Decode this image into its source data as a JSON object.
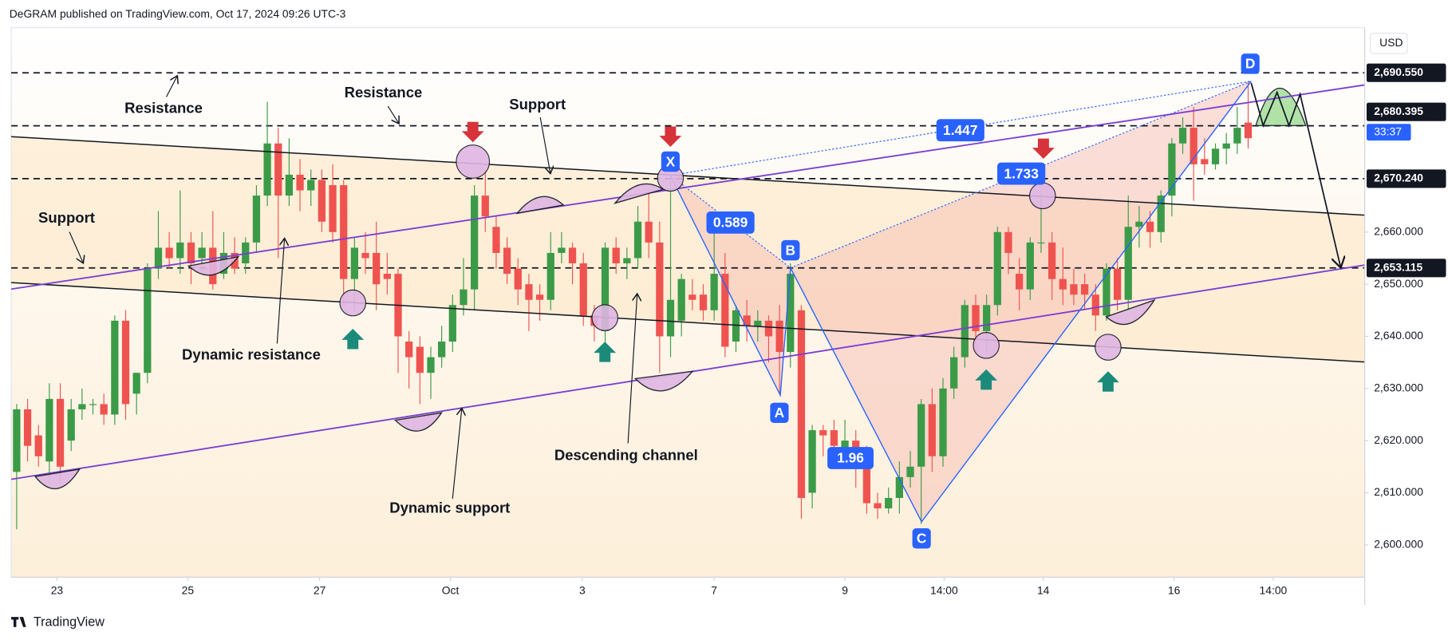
{
  "header": "DeGRAM published on TradingView.com, Oct 17, 2024 09:26 UTC-3",
  "footer": "TradingView",
  "chart_data": {
    "type": "candlestick",
    "currency": "USD",
    "countdown": "33:37",
    "up_color": "#3b9b48",
    "down_color": "#ef5350",
    "xlim": [
      0,
      124.2
    ],
    "ylim": [
      2593.8,
      2699.2
    ],
    "xticks": [
      {
        "value": 4.2,
        "label": "23"
      },
      {
        "value": 16.2,
        "label": "25"
      },
      {
        "value": 28.3,
        "label": "27"
      },
      {
        "value": 40.3,
        "label": "Oct"
      },
      {
        "value": 52.4,
        "label": "3"
      },
      {
        "value": 64.5,
        "label": "7"
      },
      {
        "value": 76.5,
        "label": "9"
      },
      {
        "value": 85.6,
        "label": "14:00"
      },
      {
        "value": 94.7,
        "label": "14"
      },
      {
        "value": 106.7,
        "label": "16"
      },
      {
        "value": 115.8,
        "label": "14:00"
      }
    ],
    "yticks": [
      {
        "value": 2600,
        "label": "2,600.000"
      },
      {
        "value": 2610,
        "label": "2,610.000"
      },
      {
        "value": 2620,
        "label": "2,620.000"
      },
      {
        "value": 2630,
        "label": "2,630.000"
      },
      {
        "value": 2640,
        "label": "2,640.000"
      },
      {
        "value": 2650,
        "label": "2,650.000"
      },
      {
        "value": 2660,
        "label": "2,660.000"
      }
    ],
    "levels": [
      {
        "value": 2690.55,
        "label": "2,690.550"
      },
      {
        "value": 2680.395,
        "label": "2,680.395"
      },
      {
        "value": 2670.24,
        "label": "2,670.240"
      },
      {
        "value": 2653.115,
        "label": "2,653.115"
      }
    ],
    "annotations": [
      "Resistance",
      "Resistance",
      "Support",
      "Support",
      "Dynamic resistance",
      "Dynamic support",
      "Descending channel"
    ],
    "pattern_points": [
      "X",
      "A",
      "B",
      "C",
      "D"
    ],
    "ratios": [
      "1.447",
      "1.733",
      "0.589",
      "1.96"
    ],
    "ohlc": [
      [
        2614,
        2627,
        2603,
        2626
      ],
      [
        2626,
        2628,
        2616,
        2619
      ],
      [
        2621,
        2623,
        2615,
        2617
      ],
      [
        2616,
        2631,
        2613,
        2628
      ],
      [
        2628,
        2631,
        2612,
        2615
      ],
      [
        2620,
        2628,
        2618,
        2626
      ],
      [
        2626,
        2630,
        2624,
        2627
      ],
      [
        2627,
        2628,
        2625,
        2627
      ],
      [
        2627,
        2629,
        2623,
        2625
      ],
      [
        2625,
        2644,
        2623,
        2643
      ],
      [
        2643,
        2645,
        2624,
        2627
      ],
      [
        2629,
        2633,
        2625,
        2633
      ],
      [
        2633,
        2654,
        2631,
        2653
      ],
      [
        2653,
        2664,
        2651,
        2657
      ],
      [
        2657,
        2660,
        2653,
        2655
      ],
      [
        2655,
        2668,
        2652,
        2658
      ],
      [
        2658,
        2660,
        2650,
        2654
      ],
      [
        2655,
        2660,
        2652,
        2657
      ],
      [
        2657,
        2664,
        2649,
        2650
      ],
      [
        2652,
        2660,
        2651,
        2656
      ],
      [
        2656,
        2659,
        2652,
        2653
      ],
      [
        2654,
        2659,
        2652,
        2658
      ],
      [
        2658,
        2669,
        2656,
        2667
      ],
      [
        2667,
        2685,
        2665,
        2677
      ],
      [
        2677,
        2680,
        2655,
        2667
      ],
      [
        2667,
        2678,
        2665,
        2671
      ],
      [
        2671,
        2674,
        2664,
        2668
      ],
      [
        2668,
        2672,
        2665,
        2670
      ],
      [
        2670,
        2672,
        2660,
        2662
      ],
      [
        2669,
        2673,
        2658,
        2660
      ],
      [
        2669,
        2670,
        2646,
        2651
      ],
      [
        2651,
        2659,
        2645,
        2657
      ],
      [
        2656,
        2660,
        2652,
        2655
      ],
      [
        2656,
        2662,
        2645,
        2650
      ],
      [
        2652,
        2656,
        2648,
        2651
      ],
      [
        2652,
        2653,
        2633,
        2640
      ],
      [
        2639,
        2641,
        2630,
        2636
      ],
      [
        2638,
        2640,
        2627,
        2633
      ],
      [
        2633,
        2638,
        2628,
        2636
      ],
      [
        2636,
        2642,
        2634,
        2639
      ],
      [
        2639,
        2648,
        2637,
        2646
      ],
      [
        2646,
        2655,
        2644,
        2649
      ],
      [
        2649,
        2669,
        2645,
        2667
      ],
      [
        2667,
        2672,
        2660,
        2663
      ],
      [
        2661,
        2663,
        2653,
        2656
      ],
      [
        2657,
        2659,
        2650,
        2652
      ],
      [
        2653,
        2655,
        2646,
        2649
      ],
      [
        2650,
        2652,
        2641,
        2647
      ],
      [
        2648,
        2650,
        2643,
        2647
      ],
      [
        2647,
        2660,
        2645,
        2656
      ],
      [
        2656,
        2660,
        2654,
        2657
      ],
      [
        2657,
        2658,
        2650,
        2654
      ],
      [
        2654,
        2656,
        2642,
        2644
      ],
      [
        2644,
        2646,
        2639,
        2642
      ],
      [
        2641,
        2658,
        2638,
        2657
      ],
      [
        2657,
        2659,
        2652,
        2654
      ],
      [
        2654,
        2657,
        2651,
        2655
      ],
      [
        2655,
        2665,
        2653,
        2662
      ],
      [
        2662,
        2668,
        2655,
        2658
      ],
      [
        2658,
        2662,
        2633,
        2640
      ],
      [
        2640,
        2671,
        2636,
        2647
      ],
      [
        2643,
        2652,
        2640,
        2651
      ],
      [
        2648,
        2651,
        2645,
        2647
      ],
      [
        2648,
        2650,
        2643,
        2645
      ],
      [
        2645,
        2660,
        2643,
        2652
      ],
      [
        2652,
        2656,
        2636,
        2638
      ],
      [
        2639,
        2646,
        2637,
        2645
      ],
      [
        2644,
        2647,
        2639,
        2642
      ],
      [
        2642,
        2645,
        2639,
        2643
      ],
      [
        2643,
        2644,
        2635,
        2640
      ],
      [
        2643,
        2646,
        2629,
        2637
      ],
      [
        2637,
        2654,
        2634,
        2652
      ],
      [
        2645,
        2646,
        2605,
        2609
      ],
      [
        2610,
        2623,
        2607,
        2622
      ],
      [
        2622,
        2623,
        2617,
        2621
      ],
      [
        2622,
        2624,
        2615,
        2619
      ],
      [
        2617,
        2624,
        2615,
        2620
      ],
      [
        2620,
        2622,
        2611,
        2616
      ],
      [
        2618,
        2619,
        2606,
        2608
      ],
      [
        2608,
        2610,
        2605,
        2607
      ],
      [
        2607,
        2611,
        2606,
        2609
      ],
      [
        2609,
        2616,
        2606,
        2613
      ],
      [
        2613,
        2618,
        2611,
        2615
      ],
      [
        2615,
        2628,
        2604,
        2627
      ],
      [
        2627,
        2630,
        2614,
        2617
      ],
      [
        2617,
        2632,
        2615,
        2630
      ],
      [
        2630,
        2638,
        2628,
        2636
      ],
      [
        2636,
        2647,
        2634,
        2646
      ],
      [
        2646,
        2648,
        2637,
        2641
      ],
      [
        2641,
        2648,
        2637,
        2646
      ],
      [
        2646,
        2661,
        2644,
        2660
      ],
      [
        2660,
        2661,
        2652,
        2656
      ],
      [
        2652,
        2655,
        2645,
        2649
      ],
      [
        2649,
        2659,
        2647,
        2658
      ],
      [
        2658,
        2668,
        2656,
        2658
      ],
      [
        2658,
        2660,
        2647,
        2651
      ],
      [
        2651,
        2657,
        2646,
        2649
      ],
      [
        2650,
        2653,
        2646,
        2648
      ],
      [
        2650,
        2652,
        2645,
        2648
      ],
      [
        2648,
        2650,
        2641,
        2644
      ],
      [
        2644,
        2654,
        2643,
        2653
      ],
      [
        2653,
        2655,
        2645,
        2647
      ],
      [
        2647,
        2667,
        2645,
        2661
      ],
      [
        2661,
        2665,
        2657,
        2662
      ],
      [
        2662,
        2664,
        2657,
        2660
      ],
      [
        2660,
        2668,
        2658,
        2667
      ],
      [
        2667,
        2678,
        2663,
        2677
      ],
      [
        2677,
        2682,
        2675,
        2680
      ],
      [
        2680,
        2684,
        2666,
        2673
      ],
      [
        2674,
        2678,
        2671,
        2673
      ],
      [
        2673,
        2677,
        2672,
        2676
      ],
      [
        2676,
        2679,
        2673,
        2677
      ],
      [
        2677,
        2684,
        2675,
        2680
      ],
      [
        2681,
        2689,
        2676,
        2678
      ]
    ]
  }
}
